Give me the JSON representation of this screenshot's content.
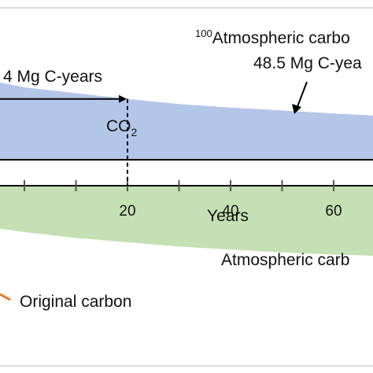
{
  "chart_data": {
    "type": "area",
    "xlabel": "Years",
    "ylabel": "",
    "xlim": [
      -10,
      80
    ],
    "ylim": [
      -1.4,
      1.4
    ],
    "x_ticks": [
      20,
      40,
      60
    ],
    "x_minor_ticks": [
      0,
      10,
      30,
      50,
      70,
      80
    ],
    "colors": {
      "co2_band": "#b4c6e7",
      "green_band": "#c5e0b4",
      "axis": "#000000",
      "frame": "#bfbfbf",
      "legend_marker": "#ed7d31"
    },
    "series": [
      {
        "label": "CO2",
        "label_sub": "2",
        "x": [
          -10,
          0,
          10,
          20,
          30,
          40,
          50,
          60,
          70,
          80
        ],
        "upper": [
          1.14,
          1.0,
          0.92,
          0.84,
          0.77,
          0.72,
          0.68,
          0.64,
          0.6,
          0.58
        ],
        "lower": [
          0,
          0,
          0,
          0,
          0,
          0,
          0,
          0,
          0,
          0
        ]
      },
      {
        "label": "Atmospheric carb",
        "x": [
          -10,
          0,
          10,
          20,
          30,
          40,
          50,
          60,
          70,
          80
        ],
        "upper": [
          -0.35,
          -0.35,
          -0.35,
          -0.35,
          -0.35,
          -0.35,
          -0.35,
          -0.35,
          -0.35,
          -0.35
        ],
        "lower": [
          -0.9,
          -1.0,
          -1.08,
          -1.14,
          -1.2,
          -1.24,
          -1.28,
          -1.31,
          -1.33,
          -1.35
        ]
      }
    ],
    "annotations": {
      "top_label_sup": "100",
      "top_label": "Atmospheric carbo",
      "top_value": "48.5 Mg C-yea",
      "left_value": "4 Mg C-years",
      "marker_x": 20,
      "marker_y": 0.84
    },
    "legend": {
      "label": "Original carbon"
    }
  }
}
